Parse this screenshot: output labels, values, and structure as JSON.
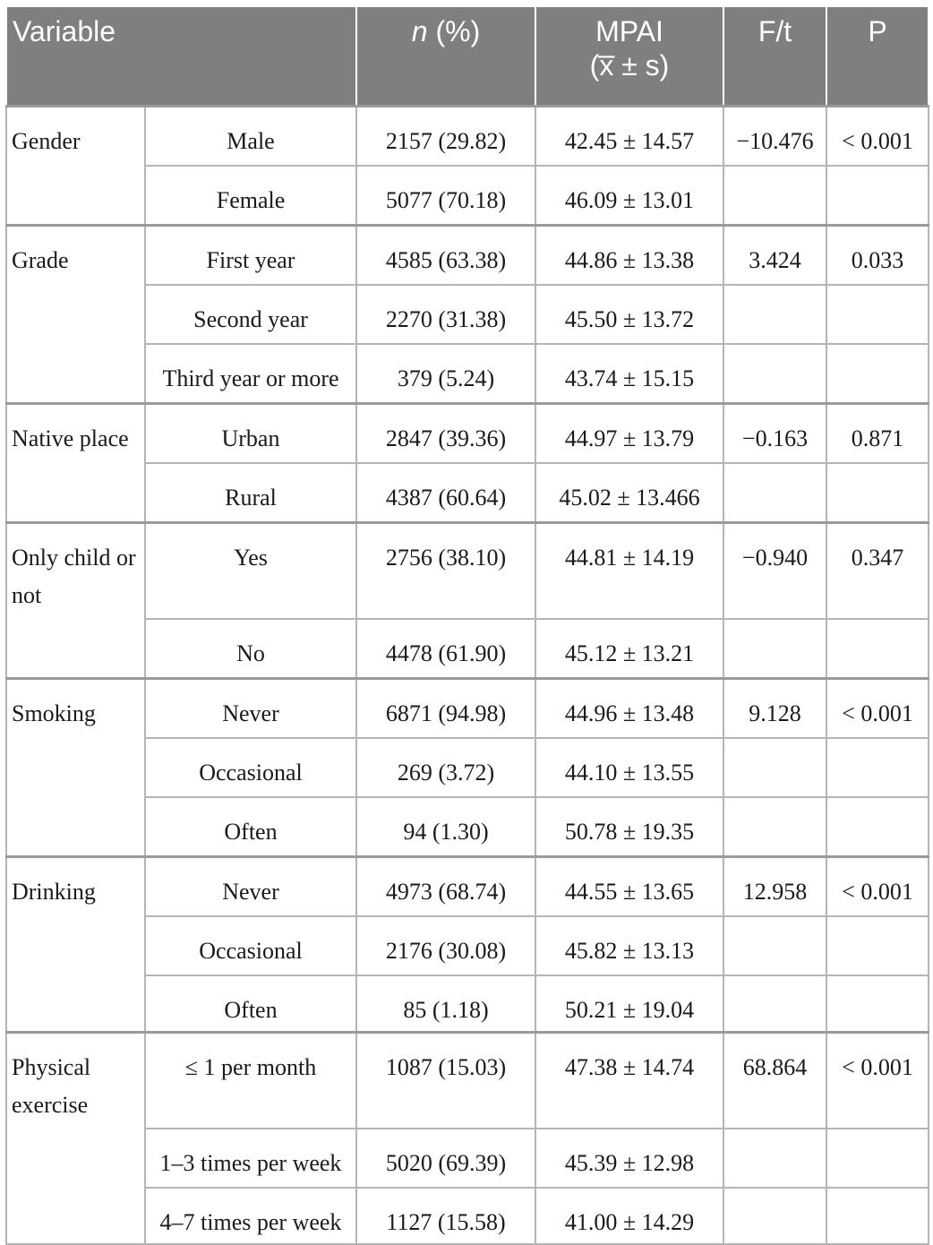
{
  "table": {
    "headers": {
      "variable": "Variable",
      "n_pct_italic": "n",
      "n_pct_rest": " (%)",
      "mpai_line1": "MPAI",
      "mpai_line2": "(x̅ ± s)",
      "ft": "F/t",
      "p": "P"
    },
    "groups": [
      {
        "variable": "Gender",
        "stat": "−10.476",
        "p": "< 0.001",
        "rows": [
          {
            "category": "Male",
            "n": "2157 (29.82)",
            "mpai": "42.45 ± 14.57"
          },
          {
            "category": "Female",
            "n": "5077 (70.18)",
            "mpai": "46.09 ± 13.01"
          }
        ]
      },
      {
        "variable": "Grade",
        "stat": "3.424",
        "p": "0.033",
        "rows": [
          {
            "category": "First year",
            "n": "4585 (63.38)",
            "mpai": "44.86 ± 13.38"
          },
          {
            "category": "Second year",
            "n": "2270 (31.38)",
            "mpai": "45.50 ± 13.72"
          },
          {
            "category": "Third year or more",
            "n": "379 (5.24)",
            "mpai": "43.74 ± 15.15"
          }
        ]
      },
      {
        "variable": "Native place",
        "stat": "−0.163",
        "p": "0.871",
        "rows": [
          {
            "category": "Urban",
            "n": "2847 (39.36)",
            "mpai": "44.97 ± 13.79"
          },
          {
            "category": "Rural",
            "n": "4387 (60.64)",
            "mpai": "45.02 ± 13.466"
          }
        ]
      },
      {
        "variable": "Only child or not",
        "stat": "−0.940",
        "p": "0.347",
        "rows": [
          {
            "category": "Yes",
            "n": "2756 (38.10)",
            "mpai": "44.81 ± 14.19"
          },
          {
            "category": "No",
            "n": "4478 (61.90)",
            "mpai": "45.12 ± 13.21"
          }
        ]
      },
      {
        "variable": "Smoking",
        "stat": "9.128",
        "p": "< 0.001",
        "rows": [
          {
            "category": "Never",
            "n": "6871 (94.98)",
            "mpai": "44.96 ± 13.48"
          },
          {
            "category": "Occasional",
            "n": "269 (3.72)",
            "mpai": "44.10 ± 13.55"
          },
          {
            "category": "Often",
            "n": "94 (1.30)",
            "mpai": "50.78 ± 19.35"
          }
        ]
      },
      {
        "variable": "Drinking",
        "stat": "12.958",
        "p": "< 0.001",
        "rows": [
          {
            "category": "Never",
            "n": "4973 (68.74)",
            "mpai": "44.55 ± 13.65"
          },
          {
            "category": "Occasional",
            "n": "2176 (30.08)",
            "mpai": "45.82 ± 13.13"
          },
          {
            "category": "Often",
            "n": "85 (1.18)",
            "mpai": "50.21 ± 19.04"
          }
        ]
      },
      {
        "variable": "Physical exercise",
        "stat": "68.864",
        "p": "< 0.001",
        "rows": [
          {
            "category": "≤ 1 per month",
            "n": "1087 (15.03)",
            "mpai": "47.38 ± 14.74"
          },
          {
            "category": "1–3 times per week",
            "n": "5020 (69.39)",
            "mpai": "45.39 ± 12.98"
          },
          {
            "category": "4–7 times per week",
            "n": "1127 (15.58)",
            "mpai": "41.00 ± 14.29"
          }
        ]
      }
    ]
  }
}
